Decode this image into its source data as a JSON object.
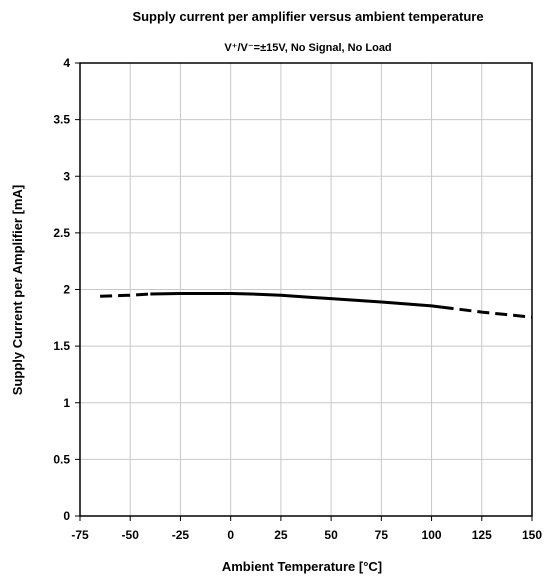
{
  "chart_data": {
    "type": "line",
    "title": "Supply current per amplifier versus ambient temperature",
    "subtitle": "V⁺/V⁻=±15V, No Signal, No Load",
    "xlabel": "Ambient Temperature  [°C]",
    "ylabel": "Supply Current per Amplifier  [mA]",
    "xlim": [
      -75,
      150
    ],
    "ylim": [
      0,
      4
    ],
    "x_ticks": [
      "-75",
      "-50",
      "-25",
      "0",
      "25",
      "50",
      "75",
      "100",
      "125",
      "150"
    ],
    "y_ticks": [
      "0",
      "0.5",
      "1",
      "1.5",
      "2",
      "2.5",
      "3",
      "3.5",
      "4"
    ],
    "grid": true,
    "legend": "none",
    "line_color": "#000000",
    "series": [
      {
        "segments": [
          {
            "style": "dashed",
            "points": [
              [
                -65,
                1.94
              ],
              [
                -50,
                1.95
              ],
              [
                -40,
                1.96
              ]
            ]
          },
          {
            "style": "solid",
            "points": [
              [
                -40,
                1.96
              ],
              [
                -25,
                1.965
              ],
              [
                -10,
                1.965
              ],
              [
                0,
                1.965
              ],
              [
                10,
                1.96
              ],
              [
                25,
                1.95
              ],
              [
                40,
                1.93
              ],
              [
                50,
                1.92
              ],
              [
                75,
                1.89
              ],
              [
                100,
                1.855
              ],
              [
                105,
                1.845
              ]
            ]
          },
          {
            "style": "dashed",
            "points": [
              [
                105,
                1.845
              ],
              [
                125,
                1.8
              ],
              [
                150,
                1.755
              ]
            ]
          }
        ]
      }
    ]
  }
}
